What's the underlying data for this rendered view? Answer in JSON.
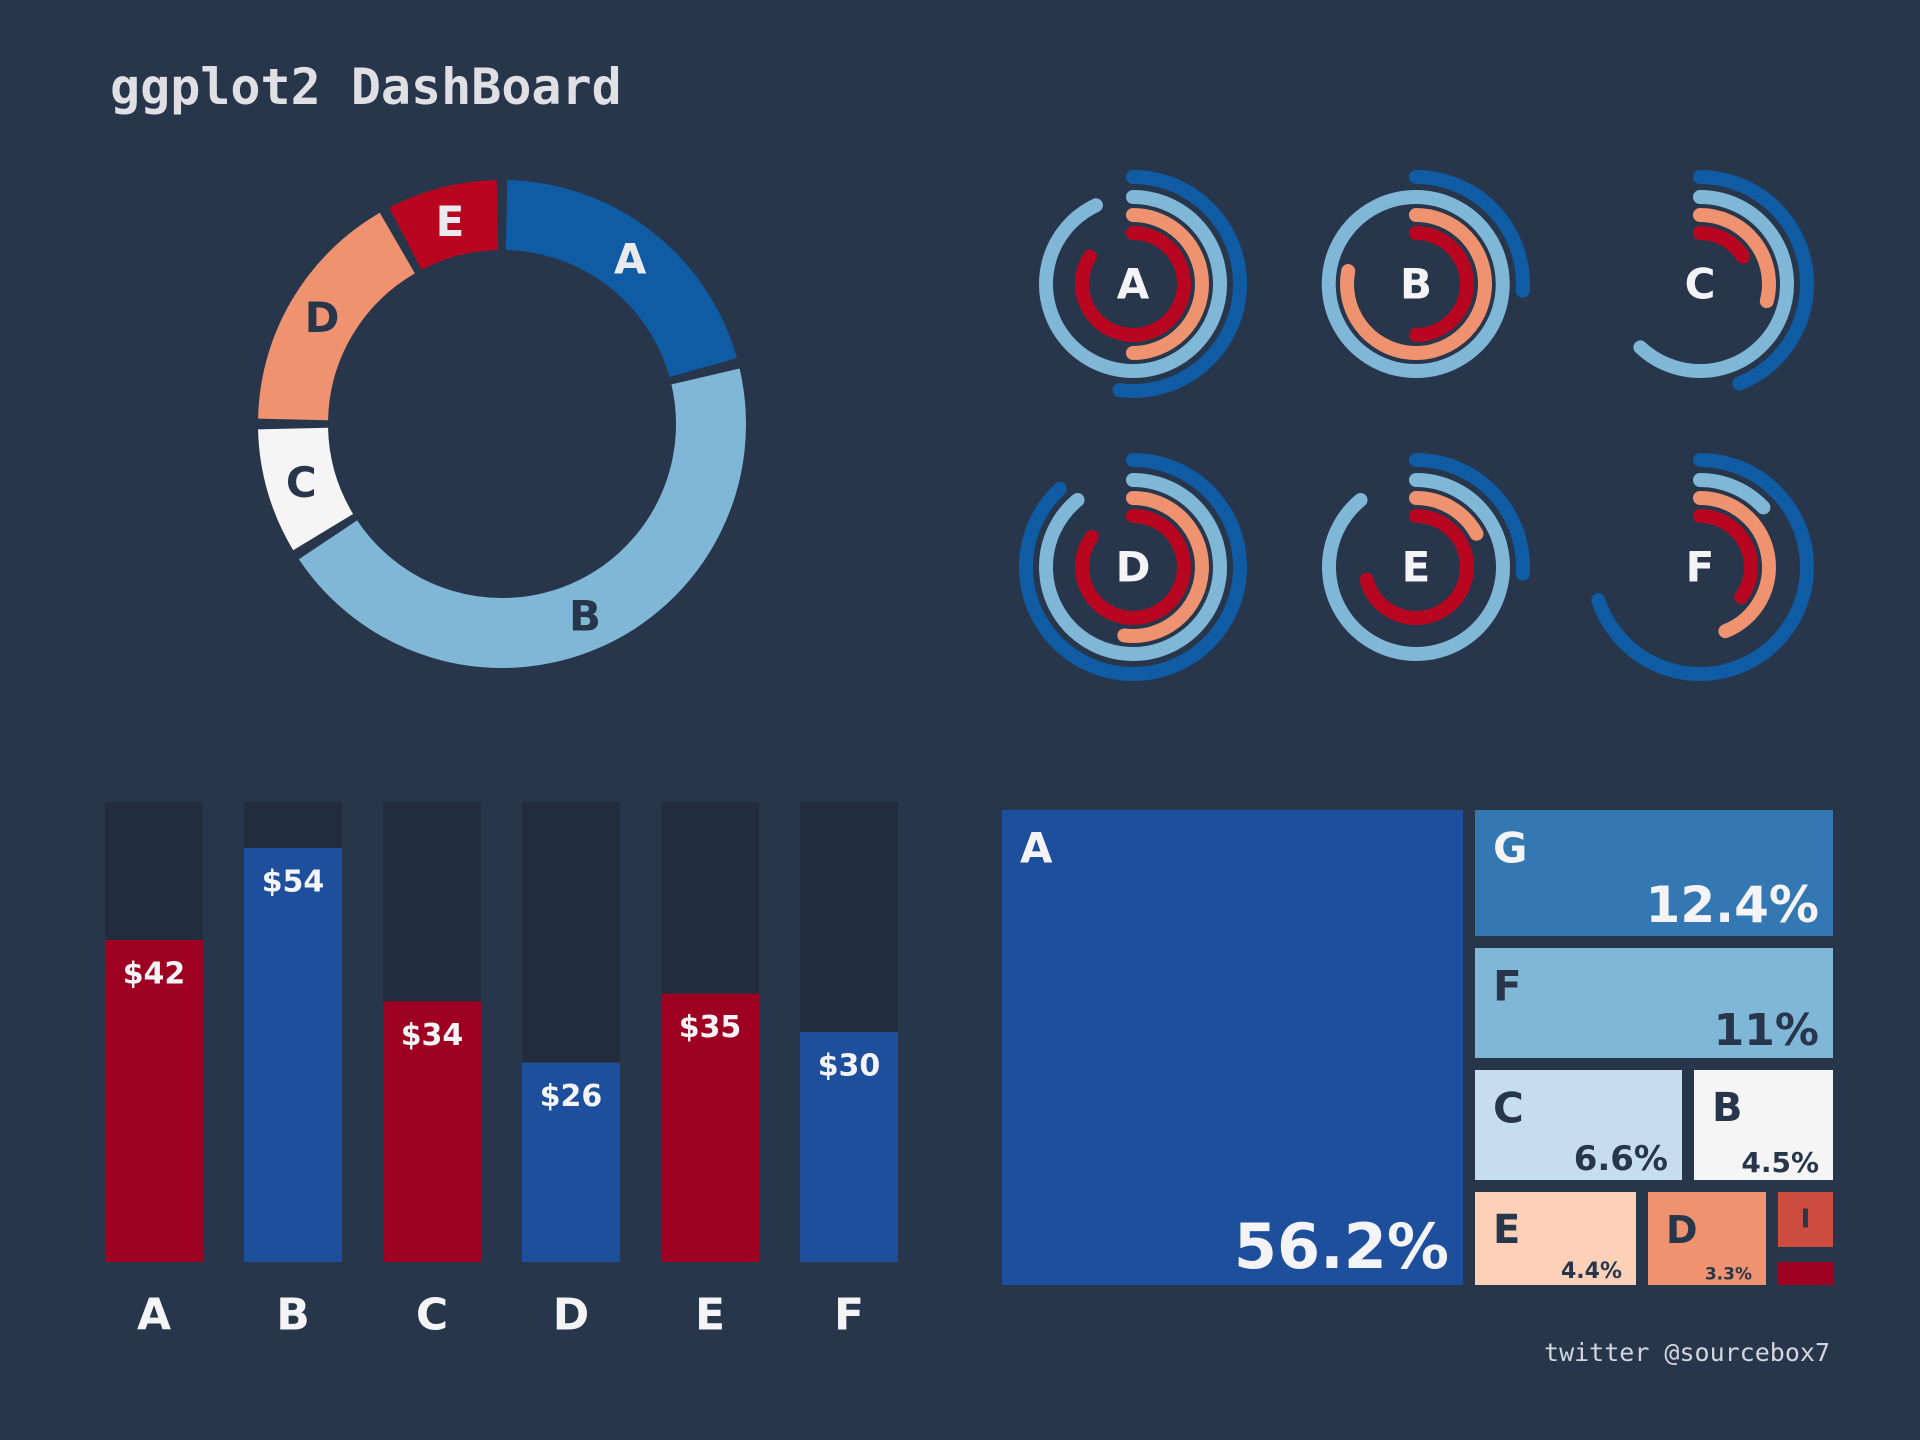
{
  "title": "ggplot2 DashBoard",
  "footer": "twitter @sourcebox7",
  "colors": {
    "background": "#27364b",
    "bar_track": "#212d3d",
    "red": "#9e0021",
    "blue": "#1d4f9c",
    "text_light": "#f4f4f6",
    "text_dark": "#27364b"
  },
  "chart_data": [
    {
      "type": "pie",
      "variant": "donut",
      "slices": [
        {
          "label": "A",
          "value": 21,
          "color": "#0f5ba4"
        },
        {
          "label": "B",
          "value": 45,
          "color": "#80b6d6"
        },
        {
          "label": "C",
          "value": 9,
          "color": "#f5f5f5"
        },
        {
          "label": "D",
          "value": 17,
          "color": "#ef9270"
        },
        {
          "label": "E",
          "value": 8,
          "color": "#b80620"
        }
      ]
    },
    {
      "type": "radial-bar",
      "ring_colors": [
        "#0f5ba4",
        "#80b6d6",
        "#ef9270",
        "#b80620"
      ],
      "panels": [
        {
          "label": "A",
          "fractions": [
            0.52,
            0.93,
            0.5,
            0.84
          ]
        },
        {
          "label": "B",
          "fractions": [
            0.26,
            1.0,
            0.78,
            0.5
          ]
        },
        {
          "label": "C",
          "fractions": [
            0.44,
            0.62,
            0.29,
            0.16
          ]
        },
        {
          "label": "D",
          "fractions": [
            0.88,
            0.89,
            0.52,
            0.85
          ]
        },
        {
          "label": "E",
          "fractions": [
            0.26,
            0.89,
            0.17,
            0.71
          ]
        },
        {
          "label": "F",
          "fractions": [
            0.7,
            0.13,
            0.44,
            0.35
          ]
        }
      ]
    },
    {
      "type": "bar",
      "categories": [
        "A",
        "B",
        "C",
        "D",
        "E",
        "F"
      ],
      "values": [
        42,
        54,
        34,
        26,
        35,
        30
      ],
      "value_labels": [
        "$42",
        "$54",
        "$34",
        "$26",
        "$35",
        "$30"
      ],
      "colors": [
        "#9e0021",
        "#1d4f9c",
        "#9e0021",
        "#1d4f9c",
        "#9e0021",
        "#1d4f9c"
      ],
      "ylim": [
        0,
        60
      ]
    },
    {
      "type": "treemap",
      "tiles": [
        {
          "label": "A",
          "value": 56.2,
          "value_label": "56.2%",
          "color": "#1d4f9c"
        },
        {
          "label": "G",
          "value": 12.4,
          "value_label": "12.4%",
          "color": "#3478b3"
        },
        {
          "label": "F",
          "value": 11,
          "value_label": "11%",
          "color": "#80b6d6"
        },
        {
          "label": "C",
          "value": 6.6,
          "value_label": "6.6%",
          "color": "#c6dded"
        },
        {
          "label": "B",
          "value": 4.5,
          "value_label": "4.5%",
          "color": "#f5f5f5"
        },
        {
          "label": "E",
          "value": 4.4,
          "value_label": "4.4%",
          "color": "#fdd0b8"
        },
        {
          "label": "D",
          "value": 3.3,
          "value_label": "3.3%",
          "color": "#ef9270"
        },
        {
          "label": "I",
          "value": "",
          "value_label": "",
          "color": "#cc4c40"
        },
        {
          "label": "",
          "value": "",
          "value_label": "",
          "color": "#9e0021"
        }
      ]
    }
  ]
}
